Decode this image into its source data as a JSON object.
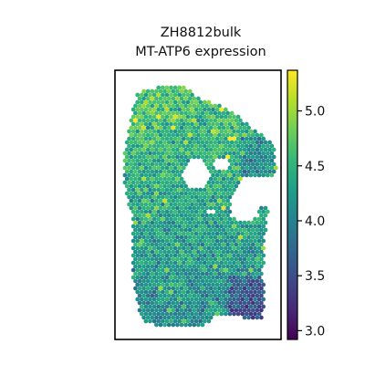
{
  "chart_data": {
    "type": "heatmap",
    "title": [
      "ZH8812bulk",
      "MT-ATP6 expression"
    ],
    "xlabel": "",
    "ylabel": "",
    "colorbar": {
      "colormap": "viridis",
      "range": [
        2.92,
        5.37
      ],
      "ticks": [
        3.0,
        3.5,
        4.0,
        4.5,
        5.0
      ],
      "tick_labels": [
        "3.0",
        "3.5",
        "4.0",
        "4.5",
        "5.0"
      ]
    },
    "typical_value": 4.3,
    "regions": [
      {
        "name": "upper tissue",
        "approx_mean": 4.6
      },
      {
        "name": "lower tissue",
        "approx_mean": 4.1
      },
      {
        "name": "lower-right corner",
        "approx_mean": 3.6
      }
    ]
  },
  "colors": {
    "viridis": [
      "#440154",
      "#482878",
      "#3e4989",
      "#31688e",
      "#26828e",
      "#1f9e89",
      "#35b779",
      "#6ece58",
      "#b5de2b",
      "#fde725"
    ]
  }
}
